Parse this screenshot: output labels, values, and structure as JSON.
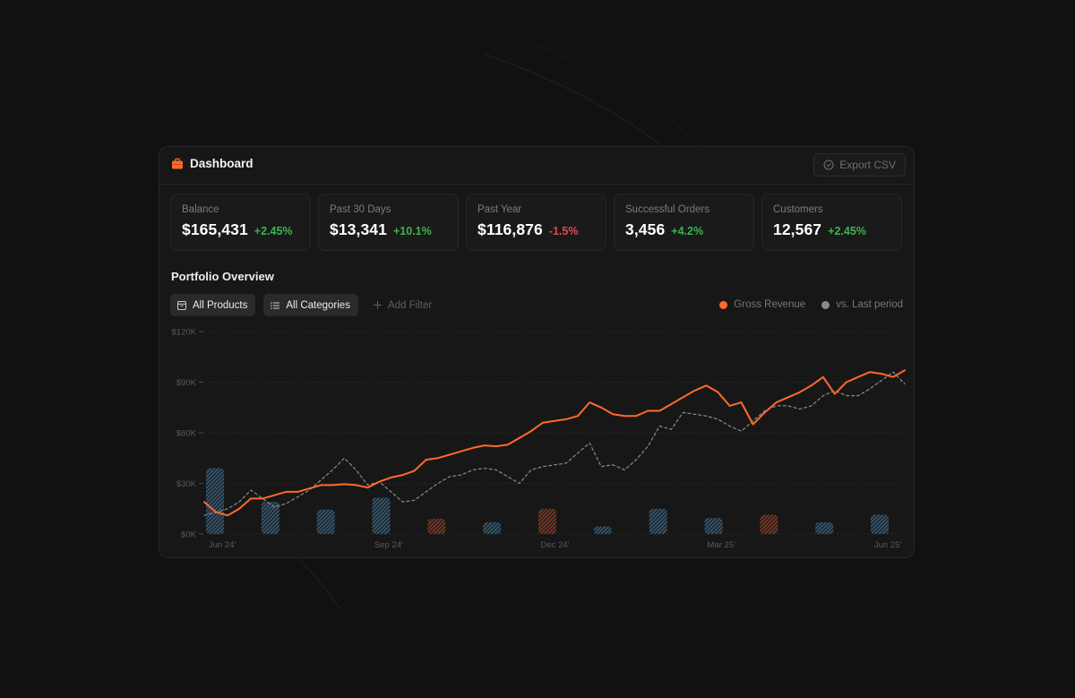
{
  "header": {
    "title": "Dashboard",
    "export_label": "Export CSV"
  },
  "stats": [
    {
      "label": "Balance",
      "value": "$165,431",
      "change": "+2.45%",
      "trend": "up"
    },
    {
      "label": "Past 30 Days",
      "value": "$13,341",
      "change": "+10.1%",
      "trend": "up"
    },
    {
      "label": "Past Year",
      "value": "$116,876",
      "change": "-1.5%",
      "trend": "down"
    },
    {
      "label": "Successful Orders",
      "value": "3,456",
      "change": "+4.2%",
      "trend": "up"
    },
    {
      "label": "Customers",
      "value": "12,567",
      "change": "+2.45%",
      "trend": "up"
    }
  ],
  "section": {
    "title": "Portfolio Overview"
  },
  "filters": {
    "products": "All Products",
    "categories": "All Categories",
    "add": "Add Filter"
  },
  "legend": {
    "primary": "Gross Revenue",
    "secondary": "vs. Last period"
  },
  "colors": {
    "accent": "#ff6a2b",
    "comparison": "#8a8a8a",
    "bar_blue": "#4c7fa0",
    "bar_red": "#b04a35",
    "positive": "#3cb44b",
    "negative": "#e5484d"
  },
  "chart_data": {
    "type": "line",
    "y_ticks": [
      "$0K",
      "$30K",
      "$60K",
      "$90K",
      "$120K"
    ],
    "ylim": [
      0,
      120000
    ],
    "x_ticks": [
      "Jun 24'",
      "Sep 24'",
      "Dec 24'",
      "Mar 25'",
      "Jun 25'"
    ],
    "series": [
      {
        "name": "Gross Revenue",
        "values": [
          19000,
          13000,
          11000,
          15000,
          21000,
          21000,
          23000,
          25000,
          25000,
          27000,
          29000,
          29000,
          29500,
          29000,
          27500,
          31000,
          33500,
          35000,
          37500,
          44000,
          45000,
          47000,
          49000,
          51000,
          52500,
          52000,
          53000,
          57000,
          61000,
          66000,
          67000,
          68000,
          70000,
          78000,
          75000,
          71000,
          70000,
          70000,
          73000,
          73000,
          77000,
          81000,
          85000,
          88000,
          84000,
          76000,
          78000,
          65000,
          72000,
          78000,
          81000,
          84000,
          88000,
          93000,
          83000,
          90000,
          93000,
          96000,
          95000,
          93000,
          97000
        ]
      },
      {
        "name": "vs. Last period",
        "values": [
          11000,
          13000,
          15000,
          19000,
          26000,
          21000,
          16000,
          18000,
          22000,
          26000,
          32000,
          38000,
          45000,
          38000,
          29000,
          31000,
          25000,
          19000,
          20000,
          25000,
          30000,
          34000,
          35000,
          38000,
          39000,
          38000,
          34000,
          30000,
          38000,
          40000,
          41000,
          42000,
          48000,
          54000,
          40000,
          41000,
          38000,
          44000,
          52000,
          64000,
          62000,
          72000,
          71000,
          70000,
          68000,
          64000,
          61000,
          67000,
          73000,
          76000,
          76000,
          74000,
          76000,
          82000,
          85000,
          82000,
          82000,
          86000,
          91000,
          96000,
          89000
        ]
      }
    ],
    "bars": [
      {
        "value": 39000,
        "color": "blue"
      },
      {
        "value": 19000,
        "color": "blue"
      },
      {
        "value": 14500,
        "color": "blue"
      },
      {
        "value": 21500,
        "color": "blue"
      },
      {
        "value": 9000,
        "color": "red"
      },
      {
        "value": 7000,
        "color": "blue"
      },
      {
        "value": 15000,
        "color": "red"
      },
      {
        "value": 4500,
        "color": "blue"
      },
      {
        "value": 15000,
        "color": "blue"
      },
      {
        "value": 9500,
        "color": "blue"
      },
      {
        "value": 11500,
        "color": "red"
      },
      {
        "value": 7000,
        "color": "blue"
      },
      {
        "value": 11500,
        "color": "blue"
      }
    ],
    "grid": true
  }
}
